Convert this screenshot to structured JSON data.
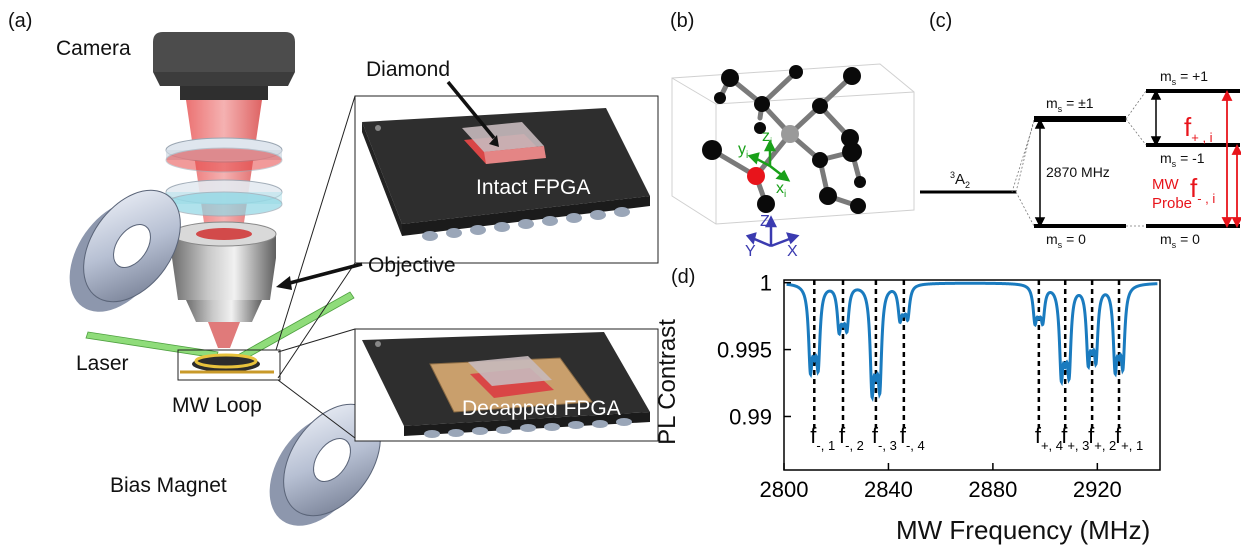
{
  "panel_a": {
    "letter": "(a)",
    "labels": {
      "camera": "Camera",
      "diamond": "Diamond",
      "intact_fpga": "Intact FPGA",
      "objective": "Objective",
      "laser": "Laser",
      "mw_loop": "MW Loop",
      "decapped_fpga": "Decapped FPGA",
      "bias_magnet": "Bias Magnet"
    }
  },
  "panel_b": {
    "letter": "(b)",
    "local_axes": {
      "x": "x",
      "y": "y",
      "z": "z",
      "sub": "i"
    },
    "lab_axes": {
      "x": "X",
      "y": "Y",
      "z": "Z"
    }
  },
  "panel_c": {
    "letter": "(c)",
    "ground_state": {
      "sup": "3",
      "base": "A",
      "sub": "2"
    },
    "levels": {
      "ms_pm1": "= ±1",
      "ms_0_left": "= 0",
      "ms_plus1": "= +1",
      "ms_minus1": "= -1",
      "ms_0_right": "= 0",
      "ms_prefix": "m",
      "ms_sub": "s"
    },
    "zero_field_splitting": "2870 MHz",
    "mw_probe": [
      "MW",
      "Probe"
    ],
    "f_plus": {
      "base": "f",
      "sub": "+ , i"
    },
    "f_minus": {
      "base": "f",
      "sub": "- , i"
    },
    "colors": {
      "red": "#e8141b"
    }
  },
  "panel_d": {
    "letter": "(d)",
    "ylabel": "PL Contrast",
    "xlabel": "MW Frequency (MHz)",
    "line_color": "#1a7bbf"
  },
  "chart_data": {
    "type": "line",
    "title": "",
    "xlabel": "MW Frequency (MHz)",
    "ylabel": "PL Contrast",
    "xlim": [
      2800,
      2944
    ],
    "ylim": [
      0.986,
      1.0002
    ],
    "xticks": [
      2800,
      2840,
      2880,
      2920
    ],
    "yticks": [
      0.99,
      0.995,
      1
    ],
    "ytick_labels": [
      "0.99",
      "0.995",
      "1"
    ],
    "grid": false,
    "resonances": [
      {
        "label": "f-,1",
        "base": "f",
        "sub": "-, 1",
        "center": 2811.6,
        "depth": 0.0056
      },
      {
        "label": "f-,2",
        "base": "f",
        "sub": "-, 2",
        "center": 2822.6,
        "depth": 0.003
      },
      {
        "label": "f-,3",
        "base": "f",
        "sub": "-, 3",
        "center": 2835.2,
        "depth": 0.007
      },
      {
        "label": "f-,4",
        "base": "f",
        "sub": "-, 4",
        "center": 2845.9,
        "depth": 0.0023
      },
      {
        "label": "f+,4",
        "base": "f",
        "sub": "+, 4",
        "center": 2897.6,
        "depth": 0.0025
      },
      {
        "label": "f+,3",
        "base": "f",
        "sub": "+, 3",
        "center": 2907.7,
        "depth": 0.006
      },
      {
        "label": "f+,2",
        "base": "f",
        "sub": "+, 2",
        "center": 2918.0,
        "depth": 0.005
      },
      {
        "label": "f+,1",
        "base": "f",
        "sub": "+, 1",
        "center": 2928.3,
        "depth": 0.0055
      }
    ],
    "hyperfine_splitting_mhz": 3.0,
    "linewidth_mhz": 0.85
  }
}
